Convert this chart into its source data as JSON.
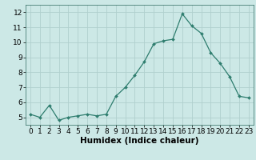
{
  "x": [
    0,
    1,
    2,
    3,
    4,
    5,
    6,
    7,
    8,
    9,
    10,
    11,
    12,
    13,
    14,
    15,
    16,
    17,
    18,
    19,
    20,
    21,
    22,
    23
  ],
  "y": [
    5.2,
    5.0,
    5.8,
    4.8,
    5.0,
    5.1,
    5.2,
    5.1,
    5.2,
    6.4,
    7.0,
    7.8,
    8.7,
    9.9,
    10.1,
    10.2,
    11.9,
    11.1,
    10.6,
    9.3,
    8.6,
    7.7,
    6.4,
    6.3
  ],
  "line_color": "#2e7d6e",
  "bg_color": "#cce8e6",
  "grid_color": "#b0cfcd",
  "xlabel": "Humidex (Indice chaleur)",
  "ylim": [
    4.5,
    12.5
  ],
  "xlim": [
    -0.5,
    23.5
  ],
  "yticks": [
    5,
    6,
    7,
    8,
    9,
    10,
    11,
    12
  ],
  "xticks": [
    0,
    1,
    2,
    3,
    4,
    5,
    6,
    7,
    8,
    9,
    10,
    11,
    12,
    13,
    14,
    15,
    16,
    17,
    18,
    19,
    20,
    21,
    22,
    23
  ],
  "tick_fontsize": 6.5,
  "xlabel_fontsize": 7.5,
  "xlabel_fontweight": "bold"
}
